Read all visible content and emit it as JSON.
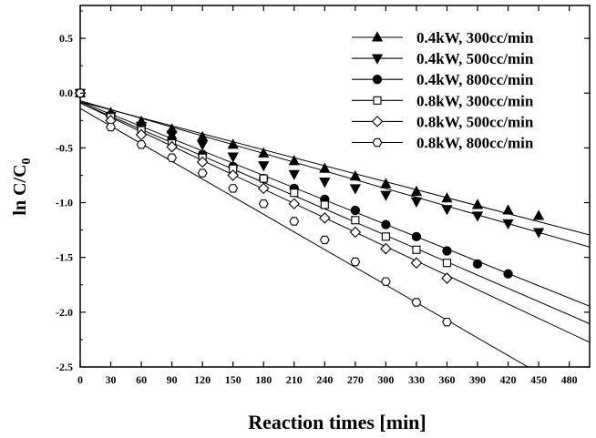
{
  "chart_data": {
    "type": "scatter",
    "xlabel": "Reaction times [min]",
    "ylabel_main": "ln C/C",
    "ylabel_sub": "0",
    "xlim": [
      0,
      500
    ],
    "ylim": [
      -2.5,
      0.8
    ],
    "x_ticks": [
      "0",
      "30",
      "60",
      "90",
      "120",
      "150",
      "180",
      "210",
      "240",
      "270",
      "300",
      "330",
      "360",
      "390",
      "420",
      "450",
      "480"
    ],
    "y_ticks": [
      "0.5",
      "0.0",
      "-0.5",
      "-1.0",
      "-1.5",
      "-2.0",
      "-2.5"
    ],
    "legend_position": "top-right",
    "grid": false,
    "series": [
      {
        "name": "0.4kW, 300cc/min",
        "marker": "triangle-up",
        "fill": "filled",
        "fit": {
          "intercept": -0.08,
          "slope": -0.00243
        },
        "points": [
          [
            0,
            0
          ],
          [
            30,
            -0.18
          ],
          [
            60,
            -0.26
          ],
          [
            90,
            -0.33
          ],
          [
            120,
            -0.4
          ],
          [
            150,
            -0.47
          ],
          [
            180,
            -0.55
          ],
          [
            210,
            -0.62
          ],
          [
            240,
            -0.69
          ],
          [
            270,
            -0.76
          ],
          [
            300,
            -0.83
          ],
          [
            330,
            -0.9
          ],
          [
            360,
            -0.96
          ],
          [
            390,
            -1.02
          ],
          [
            420,
            -1.07
          ],
          [
            450,
            -1.12
          ]
        ]
      },
      {
        "name": "0.4kW, 500cc/min",
        "marker": "triangle-down",
        "fill": "filled",
        "fit": {
          "intercept": -0.07,
          "slope": -0.00267
        },
        "points": [
          [
            0,
            0
          ],
          [
            30,
            -0.21
          ],
          [
            60,
            -0.3
          ],
          [
            90,
            -0.38
          ],
          [
            120,
            -0.47
          ],
          [
            150,
            -0.58
          ],
          [
            180,
            -0.66
          ],
          [
            210,
            -0.74
          ],
          [
            240,
            -0.81
          ],
          [
            270,
            -0.87
          ],
          [
            300,
            -0.93
          ],
          [
            330,
            -0.99
          ],
          [
            360,
            -1.06
          ],
          [
            390,
            -1.12
          ],
          [
            420,
            -1.19
          ],
          [
            450,
            -1.27
          ]
        ]
      },
      {
        "name": "0.4kW, 800cc/min",
        "marker": "circle",
        "fill": "filled",
        "fit": {
          "intercept": -0.08,
          "slope": -0.00373
        },
        "points": [
          [
            0,
            0
          ],
          [
            30,
            -0.2
          ],
          [
            60,
            -0.32
          ],
          [
            90,
            -0.42
          ],
          [
            120,
            -0.56
          ],
          [
            150,
            -0.67
          ],
          [
            180,
            -0.78
          ],
          [
            210,
            -0.87
          ],
          [
            240,
            -0.97
          ],
          [
            270,
            -1.07
          ],
          [
            300,
            -1.2
          ],
          [
            330,
            -1.31
          ],
          [
            360,
            -1.44
          ],
          [
            390,
            -1.56
          ],
          [
            420,
            -1.65
          ]
        ]
      },
      {
        "name": "0.8kW, 300cc/min",
        "marker": "square",
        "fill": "open",
        "fit": {
          "intercept": -0.09,
          "slope": -0.00403
        },
        "points": [
          [
            0,
            0
          ],
          [
            30,
            -0.22
          ],
          [
            60,
            -0.34
          ],
          [
            90,
            -0.46
          ],
          [
            120,
            -0.59
          ],
          [
            150,
            -0.69
          ],
          [
            180,
            -0.78
          ],
          [
            210,
            -0.91
          ],
          [
            240,
            -1.02
          ],
          [
            270,
            -1.16
          ],
          [
            300,
            -1.31
          ],
          [
            330,
            -1.43
          ],
          [
            360,
            -1.55
          ]
        ]
      },
      {
        "name": "0.8kW, 500cc/min",
        "marker": "diamond",
        "fill": "open",
        "fit": {
          "intercept": -0.09,
          "slope": -0.00437
        },
        "points": [
          [
            0,
            0
          ],
          [
            30,
            -0.25
          ],
          [
            60,
            -0.38
          ],
          [
            90,
            -0.49
          ],
          [
            120,
            -0.63
          ],
          [
            150,
            -0.75
          ],
          [
            180,
            -0.87
          ],
          [
            210,
            -1.01
          ],
          [
            240,
            -1.14
          ],
          [
            270,
            -1.27
          ],
          [
            300,
            -1.42
          ],
          [
            330,
            -1.55
          ],
          [
            360,
            -1.69
          ]
        ]
      },
      {
        "name": "0.8kW, 800cc/min",
        "marker": "hexagon",
        "fill": "open",
        "fit": {
          "intercept": -0.14,
          "slope": -0.00537
        },
        "points": [
          [
            0,
            0
          ],
          [
            30,
            -0.31
          ],
          [
            60,
            -0.47
          ],
          [
            90,
            -0.59
          ],
          [
            120,
            -0.73
          ],
          [
            150,
            -0.87
          ],
          [
            180,
            -1.01
          ],
          [
            210,
            -1.17
          ],
          [
            240,
            -1.34
          ],
          [
            270,
            -1.54
          ],
          [
            300,
            -1.72
          ],
          [
            330,
            -1.91
          ],
          [
            360,
            -2.09
          ]
        ]
      }
    ]
  }
}
